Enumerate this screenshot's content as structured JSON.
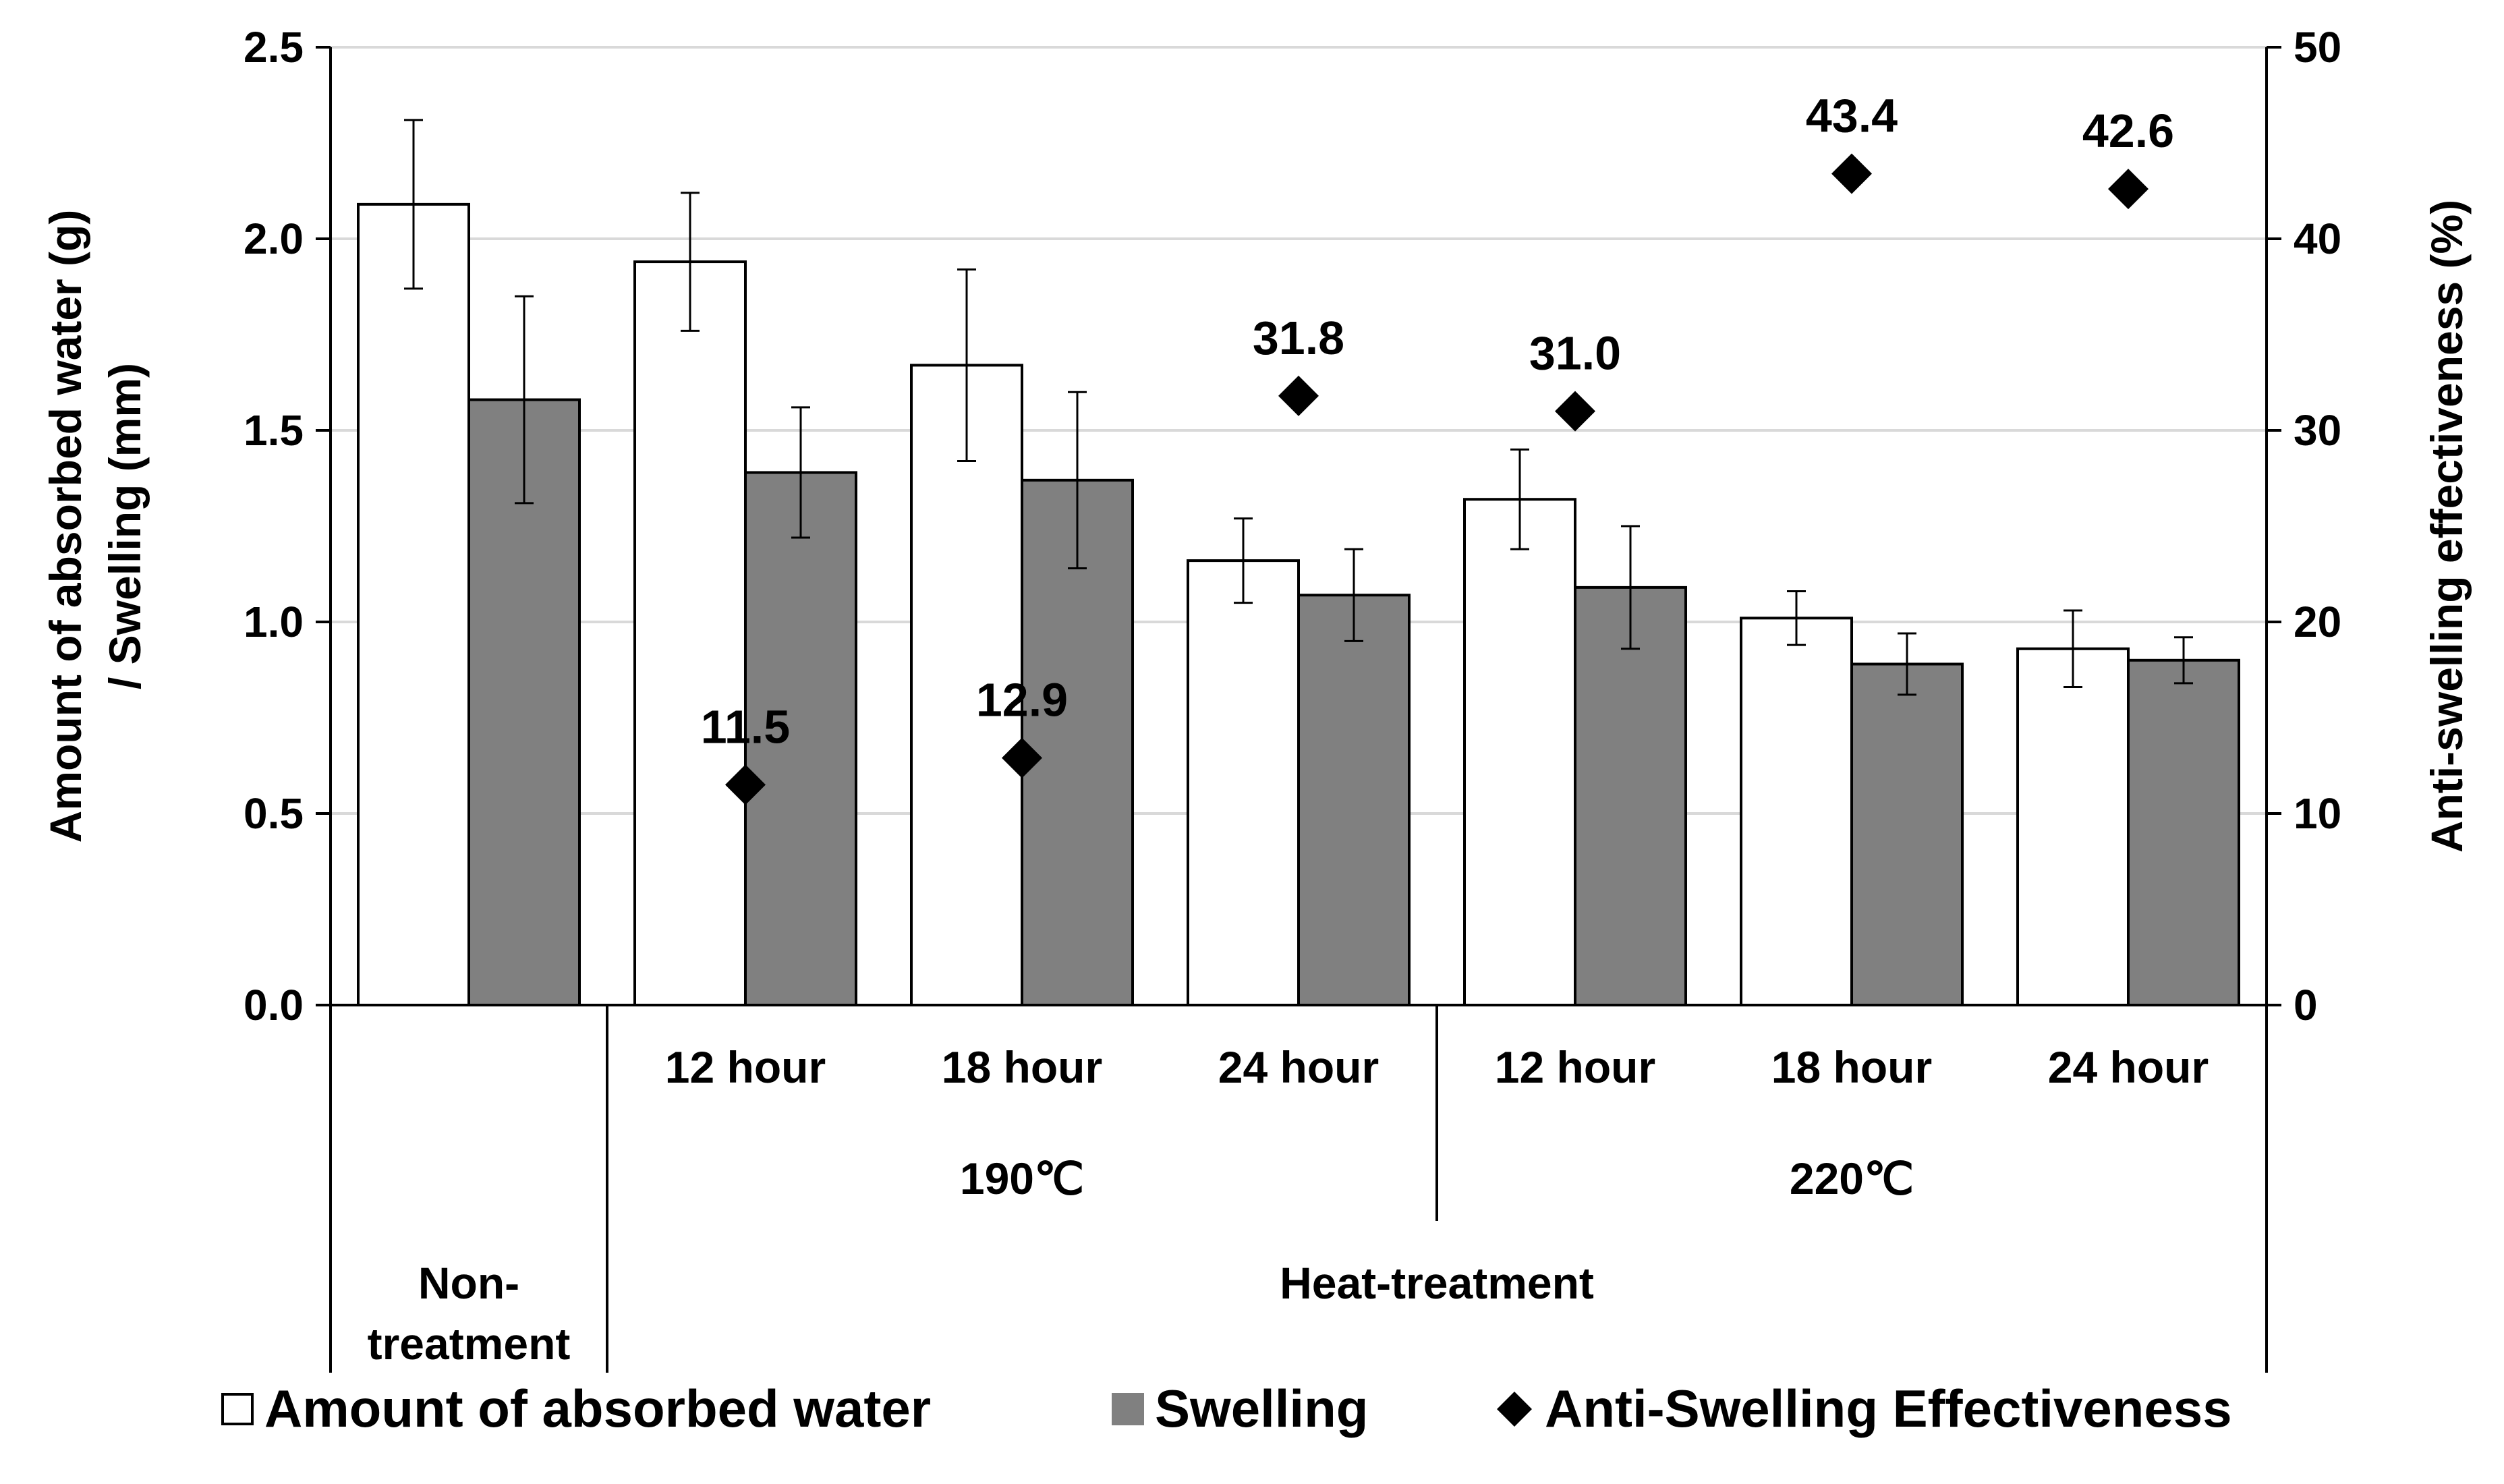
{
  "chart_data": {
    "type": "bar",
    "categories": [
      "Non-treatment",
      "12 hour",
      "18 hour",
      "24 hour",
      "12 hour",
      "18 hour",
      "24 hour"
    ],
    "category_groups": [
      {
        "label": "Non-\ntreatment",
        "level": "top",
        "members": [
          0
        ]
      },
      {
        "label": "190℃",
        "level": "middle",
        "members": [
          1,
          2,
          3
        ]
      },
      {
        "label": "220℃",
        "level": "middle",
        "members": [
          4,
          5,
          6
        ]
      },
      {
        "label": "Heat-treatment",
        "level": "top",
        "members": [
          1,
          2,
          3,
          4,
          5,
          6
        ]
      }
    ],
    "series": [
      {
        "name": "Amount of absorbed water",
        "type": "bar",
        "axis": "left",
        "color": "#ffffff",
        "values": [
          2.09,
          1.94,
          1.67,
          1.16,
          1.32,
          1.01,
          0.93
        ],
        "error": [
          0.22,
          0.18,
          0.25,
          0.11,
          0.13,
          0.07,
          0.1
        ]
      },
      {
        "name": "Swelling",
        "type": "bar",
        "axis": "left",
        "color": "#808080",
        "values": [
          1.58,
          1.39,
          1.37,
          1.07,
          1.09,
          0.89,
          0.9
        ],
        "error": [
          0.27,
          0.17,
          0.23,
          0.12,
          0.16,
          0.08,
          0.06
        ]
      },
      {
        "name": "Anti-Swelling Effectiveness",
        "type": "scatter",
        "axis": "right",
        "color": "#000000",
        "values": [
          null,
          11.5,
          12.9,
          31.8,
          31.0,
          43.4,
          42.6
        ],
        "labels": [
          "",
          "11.5",
          "12.9",
          "31.8",
          "31.0",
          "43.4",
          "42.6"
        ]
      }
    ],
    "ylabel_left": [
      "Amount of absorbed water (g)",
      "/ Swelling (mm)"
    ],
    "ylabel_right": "Anti-swelling effectiveness (%)",
    "ylim_left": [
      0,
      2.5
    ],
    "yticks_left": [
      "0.0",
      "0.5",
      "1.0",
      "1.5",
      "2.0",
      "2.5"
    ],
    "ylim_right": [
      0,
      50
    ],
    "yticks_right": [
      "0",
      "10",
      "20",
      "30",
      "40",
      "50"
    ],
    "grid": true,
    "legend_position": "bottom"
  }
}
